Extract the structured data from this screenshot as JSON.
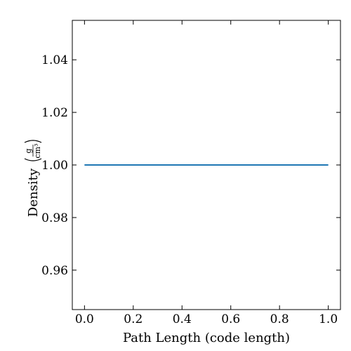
{
  "chart_data": {
    "type": "line",
    "xlabel": "Path Length  (code length)",
    "ylabel": "Density",
    "ylabel_unit": {
      "numerator": "g",
      "denominator": "cm³"
    },
    "xlim": [
      -0.05,
      1.05
    ],
    "ylim": [
      0.945,
      1.055
    ],
    "x_ticks": [
      0.0,
      0.2,
      0.4,
      0.6,
      0.8,
      1.0
    ],
    "x_tick_labels": [
      "0.0",
      "0.2",
      "0.4",
      "0.6",
      "0.8",
      "1.0"
    ],
    "y_ticks": [
      0.96,
      0.98,
      1.0,
      1.02,
      1.04
    ],
    "y_tick_labels": [
      "0.96",
      "0.98",
      "1.00",
      "1.02",
      "1.04"
    ],
    "grid": false,
    "series": [
      {
        "color": "#1f77b4",
        "x": [
          0.0,
          1.0
        ],
        "y": [
          1.0,
          1.0
        ]
      }
    ]
  }
}
